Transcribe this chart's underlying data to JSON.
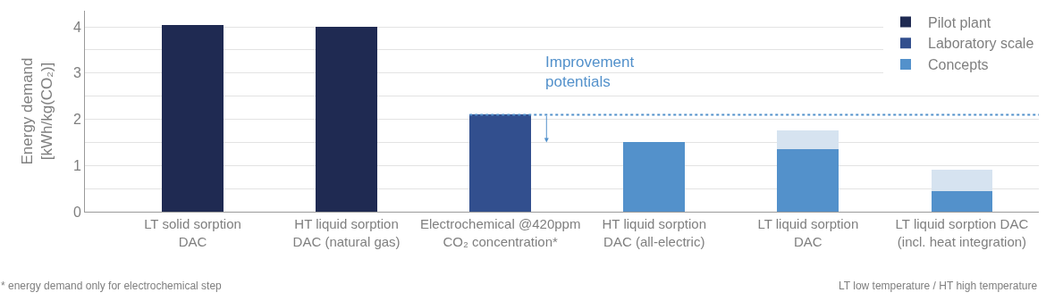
{
  "chart_data": {
    "type": "bar",
    "stacked": true,
    "ylabel": "Energy demand\n[kWh/kg(CO₂)]",
    "categories": [
      "LT solid sorption\nDAC",
      "HT liquid sorption\nDAC (natural gas)",
      "Electrochemical @420ppm\nCO₂ concentration*",
      "HT liquid sorption\nDAC (all-electric)",
      "LT liquid sorption\nDAC",
      "LT liquid sorption DAC\n(incl. heat integration)"
    ],
    "series": [
      {
        "name": "Pilot plant",
        "color": "#1f2a52",
        "values": [
          4.05,
          4.0,
          null,
          null,
          null,
          null
        ]
      },
      {
        "name": "Laboratory scale",
        "color": "#324f8e",
        "values": [
          null,
          null,
          2.1,
          null,
          null,
          null
        ]
      },
      {
        "name": "Concepts",
        "color": "#5391cb",
        "values": [
          null,
          null,
          null,
          1.5,
          1.35,
          0.45
        ]
      },
      {
        "color": "#d6e3f0",
        "values": [
          null,
          null,
          null,
          null,
          0.4,
          0.45
        ]
      }
    ],
    "ylim": [
      0,
      4.35
    ],
    "yticks": [
      0,
      {
        "value": 0.5,
        "label": null
      },
      1,
      {
        "value": 1.5,
        "label": null
      },
      2,
      {
        "value": 2.5,
        "label": null
      },
      3,
      {
        "value": 3.5,
        "label": null
      },
      4
    ],
    "grid": "y",
    "legend": "top right",
    "ref_lines": [
      {
        "axis": "y",
        "value": 2.1,
        "color": "#5391cb",
        "line_style": "dotted"
      }
    ],
    "annotations": [
      "Improvement\npotentials",
      "* energy demand only for electrochemical step",
      "LT low temperature / HT high temperature"
    ]
  }
}
